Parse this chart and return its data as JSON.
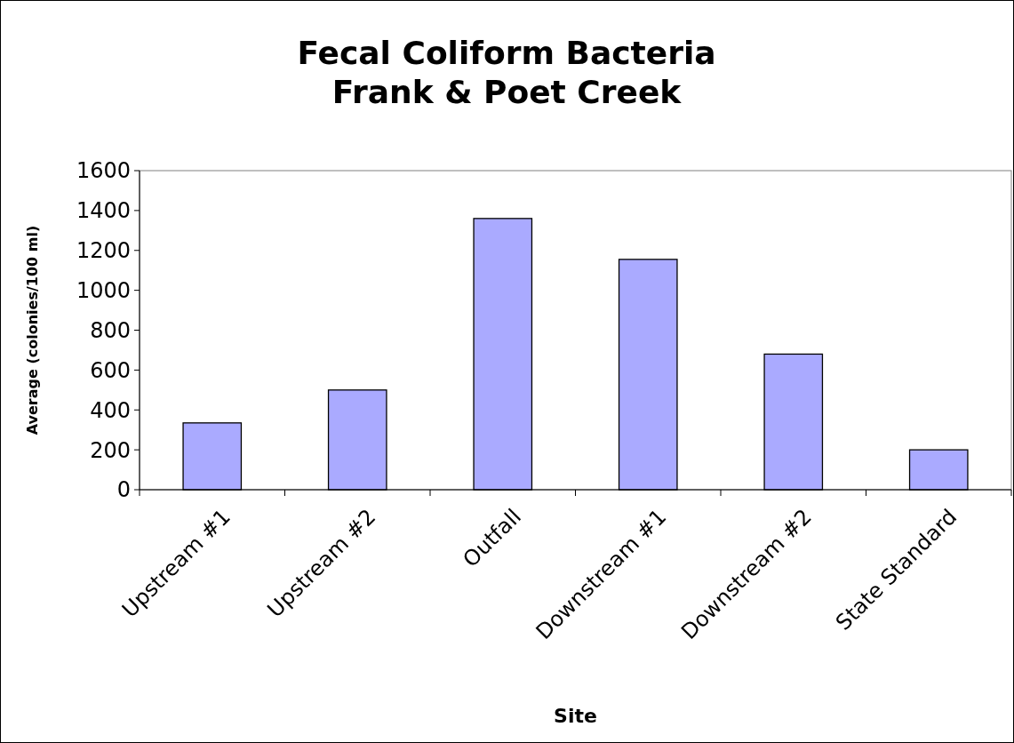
{
  "chart_data": {
    "type": "bar",
    "title": "Fecal Coliform Bacteria\nFrank & Poet Creek",
    "xlabel": "Site",
    "ylabel": "Average (colonies/100 ml)",
    "categories": [
      "Upstream #1",
      "Upstream #2",
      "Outfall",
      "Downstream #1",
      "Downstream #2",
      "State Standard"
    ],
    "values": [
      335,
      500,
      1360,
      1155,
      680,
      200
    ],
    "color": "#aaaaff",
    "ylim": [
      0,
      1600
    ],
    "yticks": [
      0,
      200,
      400,
      600,
      800,
      1000,
      1200,
      1400,
      1600
    ],
    "grid": false
  }
}
